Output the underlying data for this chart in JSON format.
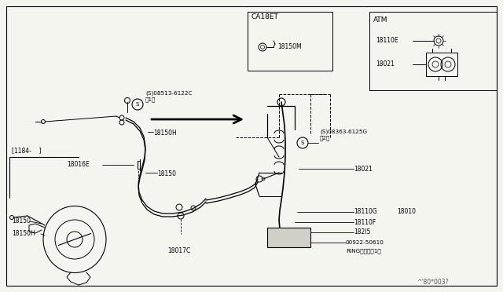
{
  "background_color": "#f5f5f0",
  "border_color": "#000000",
  "line_color": "#000000",
  "text_color": "#000000",
  "labels": {
    "S08513": "(S)08513-6122C\n（1）",
    "18150H_top": "18150H",
    "18016E": "18016E",
    "18150_mid": "18150",
    "bracket_label": "[1184-    ]",
    "18150_bot": "18150",
    "18150H_bot": "18150H",
    "18017C": "18017C",
    "CA18ET": "CA18ET",
    "18150M": "18150M",
    "ATM": "ATM",
    "18110E": "18110E",
    "18021_top": "18021",
    "S08363": "(S)08363-6125G\n（2）",
    "18021_main": "18021",
    "18110G": "18110G",
    "18010": "18010",
    "18110F": "18110F",
    "18215": "182l5",
    "00922": "00922-50610",
    "ring": "RINGリング（1）",
    "watermark": "^'80*003?"
  }
}
